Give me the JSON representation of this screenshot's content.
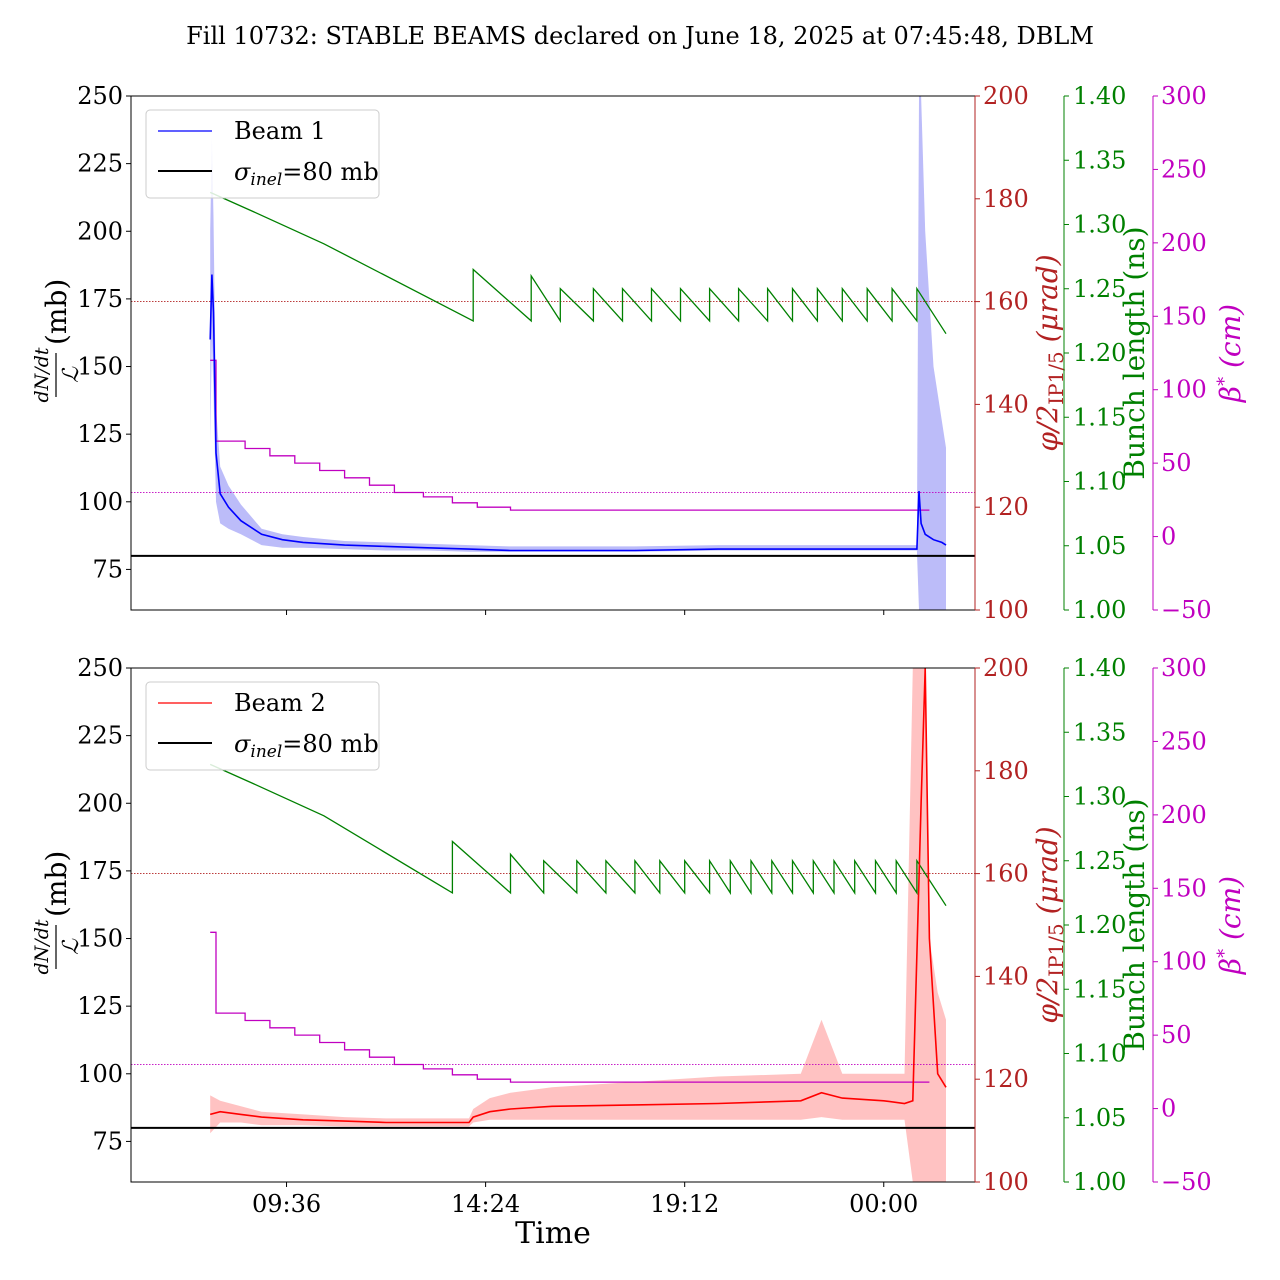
{
  "title": "Fill 10732: STABLE BEAMS declared on June 18, 2025 at 07:45:48, DBLM",
  "xlabel": "Time",
  "x_ticks": [
    "09:36",
    "14:24",
    "19:12",
    "00:00"
  ],
  "colors": {
    "beam1": "#0000ff",
    "beam1_band": "#8f8ff5",
    "beam2": "#ff0000",
    "beam2_band": "#ff9999",
    "sigma": "#000000",
    "crossing": "#b22222",
    "bunch": "#008000",
    "beta": "#c000c0"
  },
  "chart_data": [
    {
      "type": "line",
      "panel": "top",
      "x_range_hours": [
        5.85,
        26.2
      ],
      "ylim": [
        60,
        250
      ],
      "y_ticks": [
        75,
        100,
        125,
        150,
        175,
        200,
        225,
        250
      ],
      "ylabel_num": "dN/dt",
      "ylabel_den": "ℒ",
      "ylabel_unit": "(mb)",
      "y2": {
        "label_main": "φ/2",
        "label_sub": "IP1/5",
        "label_unit": "(μrad)",
        "lim": [
          100,
          200
        ],
        "ticks": [
          100,
          120,
          140,
          160,
          180,
          200
        ],
        "reference": 160
      },
      "y3": {
        "label": "Bunch length (ns)",
        "lim": [
          1.0,
          1.4
        ],
        "ticks": [
          "1.00",
          "1.05",
          "1.10",
          "1.15",
          "1.20",
          "1.25",
          "1.30",
          "1.35",
          "1.40"
        ]
      },
      "y4": {
        "label_main": "β",
        "label_sup": "*",
        "label_unit": "(cm)",
        "lim": [
          -50,
          300
        ],
        "ticks": [
          "−50",
          "0",
          "50",
          "100",
          "150",
          "200",
          "250",
          "300"
        ],
        "reference": 30
      },
      "legend": [
        {
          "label": "Beam 1",
          "color": "#0000ff"
        },
        {
          "label_sym": "σ",
          "label_sub": "inel",
          "label_rest": "=80 mb",
          "color": "#000000"
        }
      ],
      "sigma_inel": 80,
      "series": {
        "cross_section": {
          "name": "Beam 1",
          "x": [
            7.76,
            7.8,
            7.84,
            7.9,
            8.0,
            8.2,
            8.5,
            9.0,
            9.5,
            10.0,
            11.0,
            12.0,
            13.0,
            14.0,
            15.0,
            16.0,
            18.0,
            20.0,
            22.0,
            24.0,
            24.8,
            24.85,
            24.9,
            25.0,
            25.2,
            25.4,
            25.5
          ],
          "y": [
            160,
            184,
            170,
            118,
            103,
            98,
            93,
            88,
            86,
            85,
            84,
            83.5,
            83,
            82.5,
            82,
            82,
            82,
            82.5,
            82.5,
            82.5,
            82.5,
            104,
            92,
            88,
            86,
            85,
            84
          ],
          "band_low": [
            122,
            160,
            140,
            100,
            92,
            90,
            88,
            84,
            83,
            83,
            82.5,
            82,
            82,
            81.5,
            81.5,
            81.5,
            81.5,
            82,
            82,
            82,
            82,
            60,
            60,
            60,
            60,
            60,
            60
          ],
          "band_high": [
            200,
            235,
            205,
            135,
            113,
            106,
            99,
            90,
            88,
            87,
            85.5,
            85,
            84.5,
            84,
            83.5,
            83.5,
            83.5,
            84,
            84,
            84,
            84,
            250,
            250,
            200,
            150,
            130,
            120
          ]
        },
        "bunch_length": {
          "x": [
            7.76,
            8.8,
            10.5,
            14.1,
            14.2,
            18.0,
            19.5,
            21.0,
            22.5,
            24.2,
            25.5
          ],
          "y": [
            1.325,
            1.31,
            1.285,
            1.225,
            1.255,
            1.255,
            1.255,
            1.25,
            1.25,
            1.25,
            1.215
          ],
          "refills": [
            [
              14.1,
              1.225,
              1.265,
              15.5
            ],
            [
              15.5,
              1.225,
              1.26,
              16.2
            ],
            [
              16.2,
              1.225,
              1.25,
              17.0
            ],
            [
              17.0,
              1.225,
              1.25,
              17.7
            ],
            [
              17.7,
              1.225,
              1.25,
              18.4
            ],
            [
              18.4,
              1.225,
              1.25,
              19.1
            ],
            [
              19.1,
              1.225,
              1.25,
              19.8
            ],
            [
              19.8,
              1.225,
              1.25,
              20.5
            ],
            [
              20.5,
              1.225,
              1.25,
              21.2
            ],
            [
              21.2,
              1.225,
              1.25,
              21.8
            ],
            [
              21.8,
              1.225,
              1.25,
              22.4
            ],
            [
              22.4,
              1.225,
              1.25,
              23.0
            ],
            [
              23.0,
              1.225,
              1.25,
              23.6
            ],
            [
              23.6,
              1.225,
              1.25,
              24.2
            ],
            [
              24.2,
              1.225,
              1.25,
              24.8
            ]
          ]
        },
        "beta_star": {
          "x": [
            7.76,
            7.9,
            7.9,
            8.6,
            8.6,
            9.2,
            9.2,
            9.8,
            9.8,
            10.4,
            10.4,
            11.0,
            11.0,
            11.6,
            11.6,
            12.2,
            12.2,
            12.9,
            12.9,
            13.6,
            13.6,
            14.2,
            14.2,
            15.0,
            15.0,
            25.1
          ],
          "y": [
            120,
            120,
            65,
            65,
            60,
            60,
            55,
            55,
            50,
            50,
            45,
            45,
            40,
            40,
            35,
            35,
            30,
            30,
            27,
            27,
            23,
            23,
            20,
            20,
            18,
            18
          ]
        }
      }
    },
    {
      "type": "line",
      "panel": "bottom",
      "x_range_hours": [
        5.85,
        26.2
      ],
      "ylim": [
        60,
        250
      ],
      "y_ticks": [
        75,
        100,
        125,
        150,
        175,
        200,
        225,
        250
      ],
      "ylabel_num": "dN/dt",
      "ylabel_den": "ℒ",
      "ylabel_unit": "(mb)",
      "y2": {
        "label_main": "φ/2",
        "label_sub": "IP1/5",
        "label_unit": "(μrad)",
        "lim": [
          100,
          200
        ],
        "ticks": [
          100,
          120,
          140,
          160,
          180,
          200
        ],
        "reference": 160
      },
      "y3": {
        "label": "Bunch length (ns)",
        "lim": [
          1.0,
          1.4
        ],
        "ticks": [
          "1.00",
          "1.05",
          "1.10",
          "1.15",
          "1.20",
          "1.25",
          "1.30",
          "1.35",
          "1.40"
        ]
      },
      "y4": {
        "label_main": "β",
        "label_sup": "*",
        "label_unit": "(cm)",
        "lim": [
          -50,
          300
        ],
        "ticks": [
          "−50",
          "0",
          "50",
          "100",
          "150",
          "200",
          "250",
          "300"
        ],
        "reference": 30
      },
      "legend": [
        {
          "label": "Beam 2",
          "color": "#ff0000"
        },
        {
          "label_sym": "σ",
          "label_sub": "inel",
          "label_rest": "=80 mb",
          "color": "#000000"
        }
      ],
      "sigma_inel": 80,
      "series": {
        "cross_section": {
          "name": "Beam 2",
          "x": [
            7.76,
            8.0,
            8.5,
            9.0,
            10.0,
            11.0,
            12.0,
            13.0,
            14.0,
            14.1,
            14.5,
            15.0,
            16.0,
            18.0,
            20.0,
            22.0,
            22.5,
            23.0,
            24.0,
            24.5,
            24.7,
            24.9,
            25.0,
            25.1,
            25.3,
            25.5
          ],
          "y": [
            85,
            86,
            85,
            84,
            83,
            82.5,
            82,
            82,
            82,
            84,
            86,
            87,
            88,
            88.5,
            89,
            90,
            93,
            91,
            90,
            89,
            90,
            200,
            250,
            150,
            100,
            95
          ],
          "band_low": [
            78,
            82,
            82,
            81,
            81,
            80.5,
            80.5,
            80.5,
            80.5,
            82,
            83,
            83,
            83,
            83,
            83,
            83,
            84,
            83,
            83,
            83,
            60,
            60,
            60,
            60,
            60,
            60
          ],
          "band_high": [
            92,
            90,
            88,
            86,
            85,
            84,
            83.5,
            83.5,
            83.5,
            87,
            91,
            93,
            95,
            97,
            99,
            100,
            120,
            100,
            100,
            100,
            250,
            250,
            250,
            150,
            130,
            120
          ]
        },
        "bunch_length": {
          "x": [
            7.76,
            8.8,
            10.5,
            13.6,
            13.7,
            18.0,
            19.5,
            21.0,
            22.5,
            24.2,
            25.5
          ],
          "y": [
            1.325,
            1.31,
            1.285,
            1.225,
            1.26,
            1.26,
            1.255,
            1.255,
            1.25,
            1.25,
            1.215
          ],
          "refills": [
            [
              13.6,
              1.225,
              1.265,
              15.0
            ],
            [
              15.0,
              1.225,
              1.255,
              15.8
            ],
            [
              15.8,
              1.225,
              1.25,
              16.6
            ],
            [
              16.6,
              1.225,
              1.25,
              17.3
            ],
            [
              17.3,
              1.225,
              1.25,
              18.0
            ],
            [
              18.0,
              1.225,
              1.25,
              18.6
            ],
            [
              18.6,
              1.225,
              1.25,
              19.2
            ],
            [
              19.2,
              1.225,
              1.25,
              19.8
            ],
            [
              19.8,
              1.225,
              1.25,
              20.3
            ],
            [
              20.3,
              1.225,
              1.25,
              20.8
            ],
            [
              20.8,
              1.225,
              1.25,
              21.3
            ],
            [
              21.3,
              1.225,
              1.25,
              21.8
            ],
            [
              21.8,
              1.225,
              1.25,
              22.3
            ],
            [
              22.3,
              1.225,
              1.25,
              22.8
            ],
            [
              22.8,
              1.225,
              1.25,
              23.3
            ],
            [
              23.3,
              1.225,
              1.25,
              23.8
            ],
            [
              23.8,
              1.225,
              1.25,
              24.3
            ],
            [
              24.3,
              1.225,
              1.25,
              24.8
            ]
          ]
        },
        "beta_star": {
          "x": [
            7.76,
            7.9,
            7.9,
            8.6,
            8.6,
            9.2,
            9.2,
            9.8,
            9.8,
            10.4,
            10.4,
            11.0,
            11.0,
            11.6,
            11.6,
            12.2,
            12.2,
            12.9,
            12.9,
            13.6,
            13.6,
            14.2,
            14.2,
            15.0,
            15.0,
            25.1
          ],
          "y": [
            120,
            120,
            65,
            65,
            60,
            60,
            55,
            55,
            50,
            50,
            45,
            45,
            40,
            40,
            35,
            35,
            30,
            30,
            27,
            27,
            23,
            23,
            20,
            20,
            18,
            18
          ]
        }
      }
    }
  ]
}
